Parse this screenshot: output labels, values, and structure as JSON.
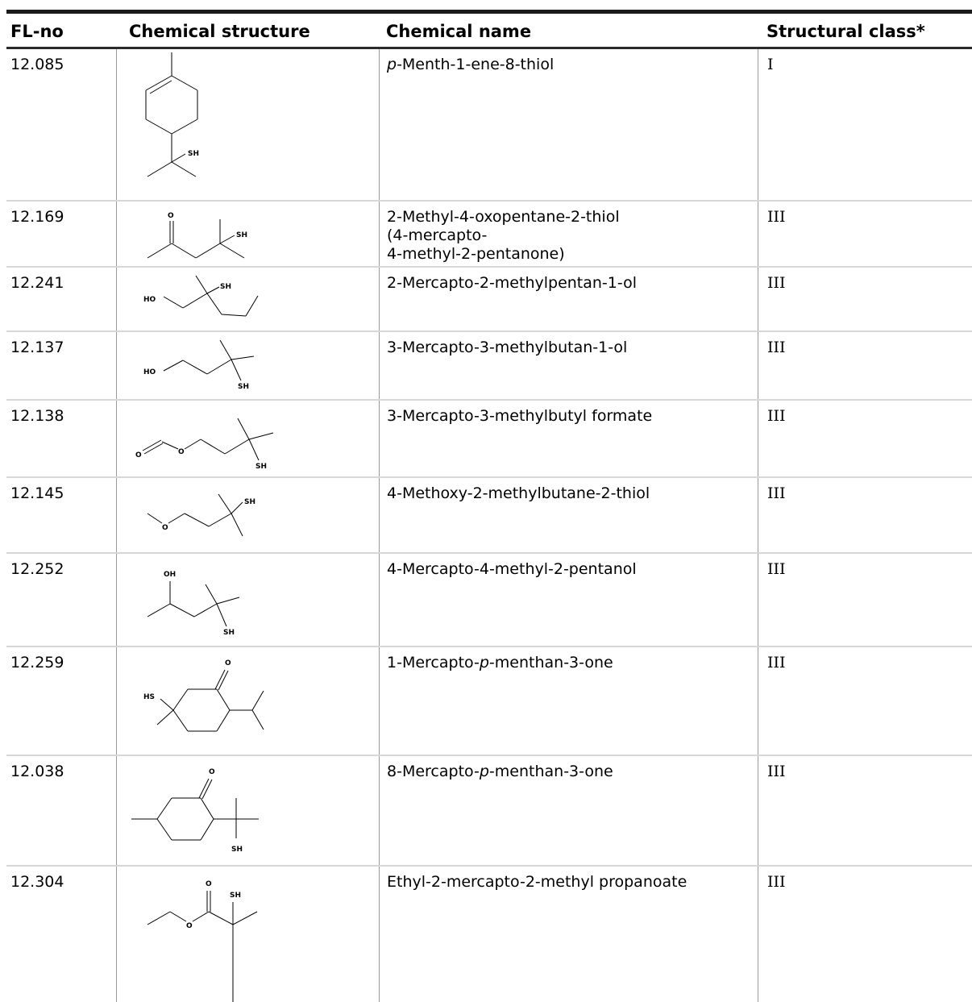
{
  "header": {
    "fl_no": "FL-no",
    "structure": "Chemical structure",
    "name": "Chemical name",
    "class": "Structural class*"
  },
  "rows": [
    {
      "fl_no": "12.085",
      "name_prefix": "p",
      "name_rest": "-Menth-1-ene-8-thiol",
      "class": "I"
    },
    {
      "fl_no": "12.169",
      "name": "2-Methyl-4-oxopentane-2-thiol\n(4-mercapto-\n4-methyl-2-pentanone)",
      "class": "III"
    },
    {
      "fl_no": "12.241",
      "name": "2-Mercapto-2-methylpentan-1-ol",
      "class": "III"
    },
    {
      "fl_no": "12.137",
      "name": "3-Mercapto-3-methylbutan-1-ol",
      "class": "III"
    },
    {
      "fl_no": "12.138",
      "name": "3-Mercapto-3-methylbutyl formate",
      "class": "III"
    },
    {
      "fl_no": "12.145",
      "name": "4-Methoxy-2-methylbutane-2-thiol",
      "class": "III"
    },
    {
      "fl_no": "12.252",
      "name": "4-Mercapto-4-methyl-2-pentanol",
      "class": "III"
    },
    {
      "fl_no": "12.259",
      "name_a": "1-Mercapto-",
      "name_i": "p",
      "name_b": "-menthan-3-one",
      "class": "III"
    },
    {
      "fl_no": "12.038",
      "name_a": "8-Mercapto-",
      "name_i": "p",
      "name_b": "-menthan-3-one",
      "class": "III"
    },
    {
      "fl_no": "12.304",
      "name": "Ethyl-2-mercapto-2-methyl propanoate",
      "class": "III"
    }
  ],
  "atom_labels": {
    "sh": "SH",
    "hs": "HS",
    "ho": "HO",
    "oh": "OH",
    "o": "O"
  }
}
